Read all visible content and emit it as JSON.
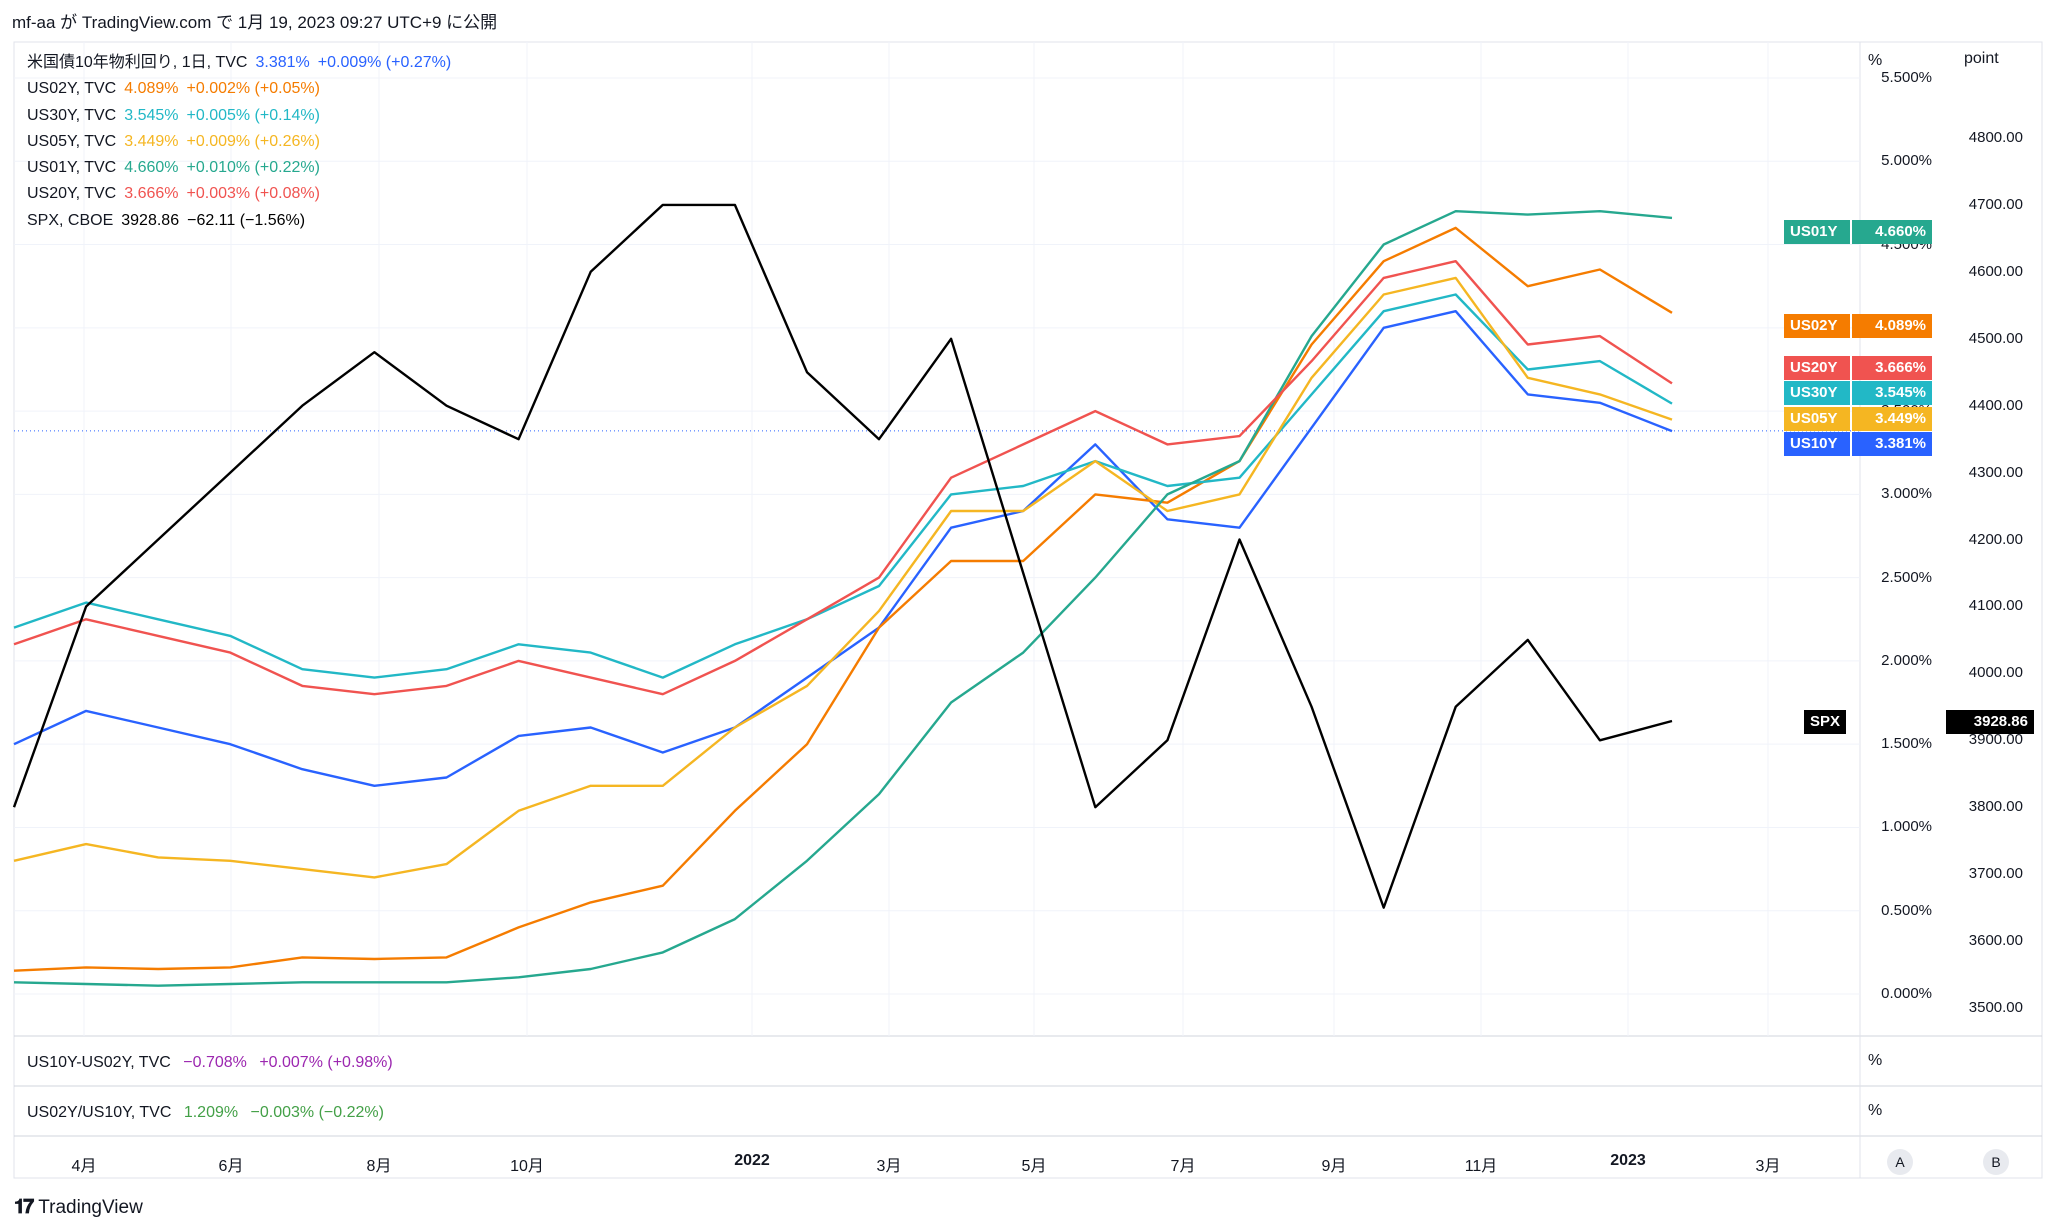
{
  "header": {
    "text": "mf-aa が TradingView.com で 1月 19, 2023 09:27 UTC+9 に公開"
  },
  "legend": [
    {
      "name": "米国債10年物利回り, 1日, TVC",
      "value": "3.381%",
      "change": "+0.009% (+0.27%)",
      "color": "#2962ff"
    },
    {
      "name": "US02Y, TVC",
      "value": "4.089%",
      "change": "+0.002% (+0.05%)",
      "color": "#f57c00"
    },
    {
      "name": "US30Y, TVC",
      "value": "3.545%",
      "change": "+0.005% (+0.14%)",
      "color": "#22b8c6"
    },
    {
      "name": "US05Y, TVC",
      "value": "3.449%",
      "change": "+0.009% (+0.26%)",
      "color": "#f5b622"
    },
    {
      "name": "US01Y, TVC",
      "value": "4.660%",
      "change": "+0.010% (+0.22%)",
      "color": "#26a88f"
    },
    {
      "name": "US20Y, TVC",
      "value": "3.666%",
      "change": "+0.003% (+0.08%)",
      "color": "#f05350"
    },
    {
      "name": "SPX, CBOE",
      "value": "3928.86",
      "change": "−62.11 (−1.56%)",
      "color": "#000000"
    }
  ],
  "sub_panes": [
    {
      "name": "US10Y-US02Y, TVC",
      "value": "−0.708%",
      "change": "+0.007% (+0.98%)",
      "color": "#9c27b0",
      "unit": "%"
    },
    {
      "name": "US02Y/US10Y, TVC",
      "value": "1.209%",
      "change": "−0.003% (−0.22%)",
      "color": "#43a047",
      "unit": "%"
    }
  ],
  "axis_units": {
    "left": "%",
    "right": "point"
  },
  "left_axis_ticks": [
    "5.500%",
    "5.000%",
    "4.500%",
    "4.000%",
    "3.500%",
    "3.000%",
    "2.500%",
    "2.000%",
    "1.500%",
    "1.000%",
    "0.500%",
    "0.000%"
  ],
  "right_axis_ticks": [
    "4800.00",
    "4700.00",
    "4600.00",
    "4500.00",
    "4400.00",
    "4300.00",
    "4200.00",
    "4100.00",
    "4000.00",
    "3900.00",
    "3800.00",
    "3700.00",
    "3600.00",
    "3500.00"
  ],
  "x_axis_ticks": [
    {
      "label": "4月",
      "bold": false
    },
    {
      "label": "6月",
      "bold": false
    },
    {
      "label": "8月",
      "bold": false
    },
    {
      "label": "10月",
      "bold": false
    },
    {
      "label": "2022",
      "bold": true
    },
    {
      "label": "3月",
      "bold": false
    },
    {
      "label": "5月",
      "bold": false
    },
    {
      "label": "7月",
      "bold": false
    },
    {
      "label": "9月",
      "bold": false
    },
    {
      "label": "11月",
      "bold": false
    },
    {
      "label": "2023",
      "bold": true
    },
    {
      "label": "3月",
      "bold": false
    }
  ],
  "price_tags": [
    {
      "label": "US01Y",
      "value": "4.660%",
      "color": "#26a88f"
    },
    {
      "label": "US02Y",
      "value": "4.089%",
      "color": "#f57c00"
    },
    {
      "label": "US20Y",
      "value": "3.666%",
      "color": "#f05350"
    },
    {
      "label": "US30Y",
      "value": "3.545%",
      "color": "#22b8c6"
    },
    {
      "label": "US05Y",
      "value": "3.449%",
      "color": "#f5b622"
    },
    {
      "label": "US10Y",
      "value": "3.381%",
      "color": "#2962ff"
    },
    {
      "label": "SPX",
      "value": "3928.86",
      "color": "#000000"
    }
  ],
  "scale_buttons": [
    "A",
    "B"
  ],
  "footer": {
    "brand": "TradingView",
    "logo": "tradingview-logo-icon"
  },
  "chart_data": {
    "type": "line",
    "x": [
      "2021-03-01",
      "2021-04-01",
      "2021-05-01",
      "2021-06-01",
      "2021-07-01",
      "2021-08-01",
      "2021-09-01",
      "2021-10-01",
      "2021-11-01",
      "2021-12-01",
      "2022-01-01",
      "2022-02-01",
      "2022-03-01",
      "2022-04-01",
      "2022-05-01",
      "2022-06-01",
      "2022-07-01",
      "2022-08-01",
      "2022-09-01",
      "2022-10-01",
      "2022-11-01",
      "2022-12-01",
      "2023-01-01",
      "2023-01-19"
    ],
    "left_ylim": [
      0.0,
      5.5
    ],
    "right_ylim": [
      3500,
      4800
    ],
    "grid": true,
    "series": [
      {
        "name": "US10Y",
        "axis": "left",
        "color": "#2962ff",
        "values": [
          1.5,
          1.7,
          1.6,
          1.5,
          1.35,
          1.25,
          1.3,
          1.55,
          1.6,
          1.45,
          1.6,
          1.9,
          2.2,
          2.8,
          2.9,
          3.3,
          2.85,
          2.8,
          3.4,
          4.0,
          4.1,
          3.6,
          3.55,
          3.38
        ]
      },
      {
        "name": "US02Y",
        "axis": "left",
        "color": "#f57c00",
        "values": [
          0.14,
          0.16,
          0.15,
          0.16,
          0.22,
          0.21,
          0.22,
          0.4,
          0.55,
          0.65,
          1.1,
          1.5,
          2.2,
          2.6,
          2.6,
          3.0,
          2.95,
          3.2,
          3.9,
          4.4,
          4.6,
          4.25,
          4.35,
          4.09
        ]
      },
      {
        "name": "US30Y",
        "axis": "left",
        "color": "#22b8c6",
        "values": [
          2.2,
          2.35,
          2.25,
          2.15,
          1.95,
          1.9,
          1.95,
          2.1,
          2.05,
          1.9,
          2.1,
          2.25,
          2.45,
          3.0,
          3.05,
          3.2,
          3.05,
          3.1,
          3.6,
          4.1,
          4.2,
          3.75,
          3.8,
          3.545
        ]
      },
      {
        "name": "US05Y",
        "axis": "left",
        "color": "#f5b622",
        "values": [
          0.8,
          0.9,
          0.82,
          0.8,
          0.75,
          0.7,
          0.78,
          1.1,
          1.25,
          1.25,
          1.6,
          1.85,
          2.3,
          2.9,
          2.9,
          3.2,
          2.9,
          3.0,
          3.7,
          4.2,
          4.3,
          3.7,
          3.6,
          3.449
        ]
      },
      {
        "name": "US01Y",
        "axis": "left",
        "color": "#26a88f",
        "values": [
          0.07,
          0.06,
          0.05,
          0.06,
          0.07,
          0.07,
          0.07,
          0.1,
          0.15,
          0.25,
          0.45,
          0.8,
          1.2,
          1.75,
          2.05,
          2.5,
          3.0,
          3.2,
          3.95,
          4.5,
          4.7,
          4.68,
          4.7,
          4.66
        ]
      },
      {
        "name": "US20Y",
        "axis": "left",
        "color": "#f05350",
        "values": [
          2.1,
          2.25,
          2.15,
          2.05,
          1.85,
          1.8,
          1.85,
          2.0,
          1.9,
          1.8,
          2.0,
          2.25,
          2.5,
          3.1,
          3.3,
          3.5,
          3.3,
          3.35,
          3.8,
          4.3,
          4.4,
          3.9,
          3.95,
          3.666
        ]
      },
      {
        "name": "SPX",
        "axis": "right",
        "color": "#000000",
        "values": [
          3800,
          4100,
          4200,
          4300,
          4400,
          4480,
          4400,
          4350,
          4600,
          4700,
          4700,
          4450,
          4350,
          4500,
          4150,
          3800,
          3900,
          4200,
          3950,
          3650,
          3950,
          4050,
          3900,
          3928.86
        ]
      }
    ]
  }
}
